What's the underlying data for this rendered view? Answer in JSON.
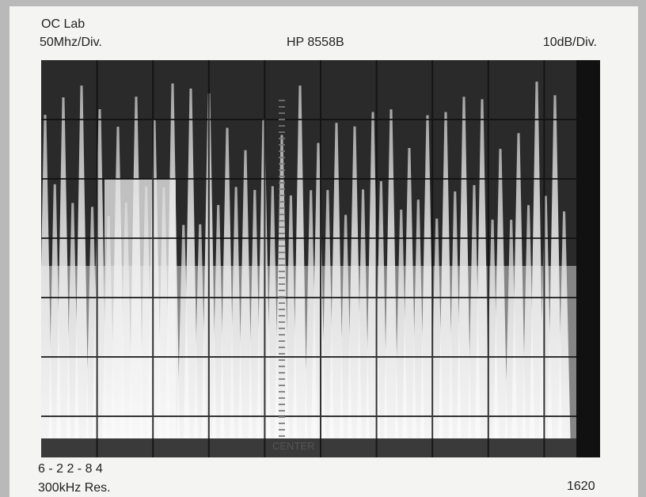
{
  "header": {
    "lab": "OC Lab",
    "horizontal_scale": "50Mhz/Div.",
    "instrument": "HP 8558B",
    "vertical_scale": "10dB/Div."
  },
  "screen": {
    "center_label": "CENTER"
  },
  "footer": {
    "date": "6 - 2 2 - 8 4",
    "resolution": "300kHz Res.",
    "frame_number": "1620"
  }
}
